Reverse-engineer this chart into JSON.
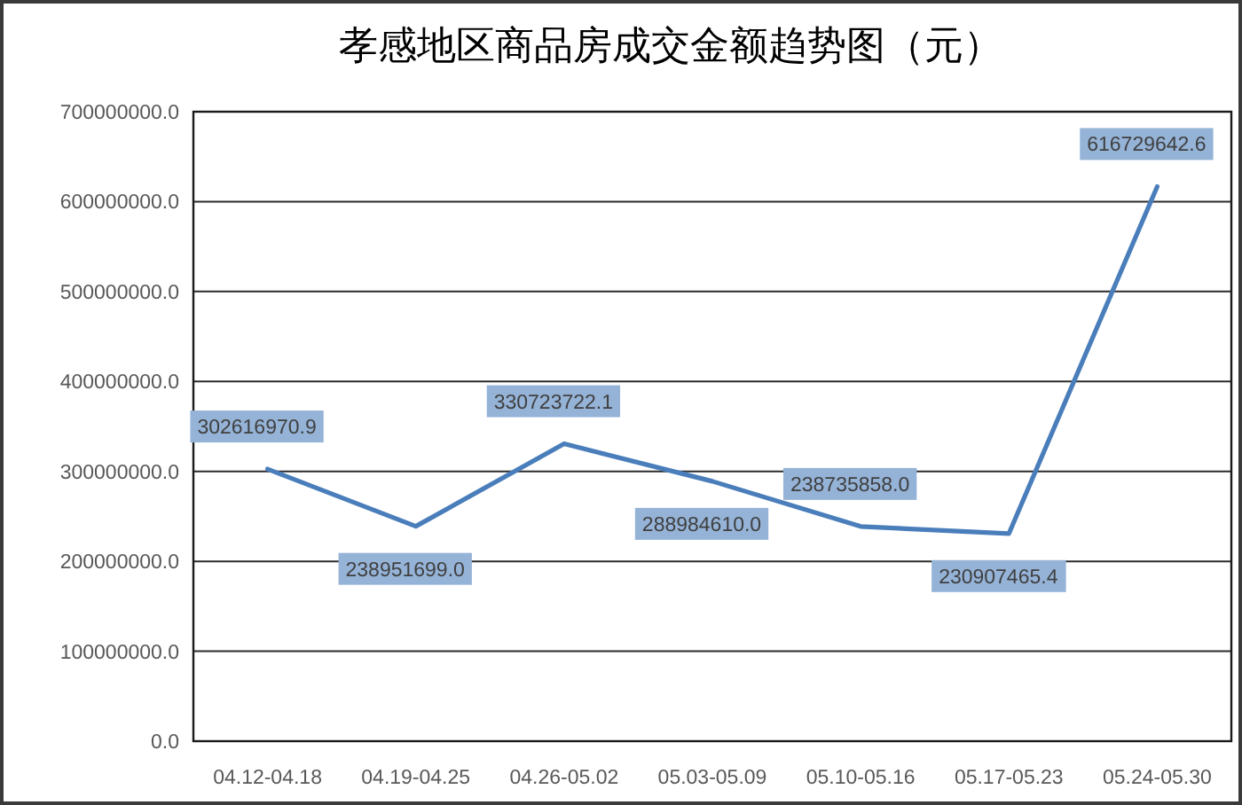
{
  "chart_data": {
    "type": "line",
    "title": "孝感地区商品房成交金额趋势图（元）",
    "categories": [
      "04.12-04.18",
      "04.19-04.25",
      "04.26-05.02",
      "05.03-05.09",
      "05.10-05.16",
      "05.17-05.23",
      "05.24-05.30"
    ],
    "values": [
      302616970.9,
      238951699.0,
      330723722.1,
      288984610.0,
      238735858.0,
      230907465.4,
      616729642.6
    ],
    "value_labels": [
      "302616970.9",
      "238951699.0",
      "330723722.1",
      "288984610.0",
      "238735858.0",
      "230907465.4",
      "616729642.6"
    ],
    "color": "#4a7ebb",
    "ylim": [
      0,
      700000000
    ],
    "yticks": [
      {
        "value": 0,
        "label": "0.0"
      },
      {
        "value": 100000000,
        "label": "100000000.0"
      },
      {
        "value": 200000000,
        "label": "200000000.0"
      },
      {
        "value": 300000000,
        "label": "300000000.0"
      },
      {
        "value": 400000000,
        "label": "400000000.0"
      },
      {
        "value": 500000000,
        "label": "500000000.0"
      },
      {
        "value": 600000000,
        "label": "600000000.0"
      },
      {
        "value": 700000000,
        "label": "700000000.0"
      }
    ],
    "grid": "y"
  }
}
